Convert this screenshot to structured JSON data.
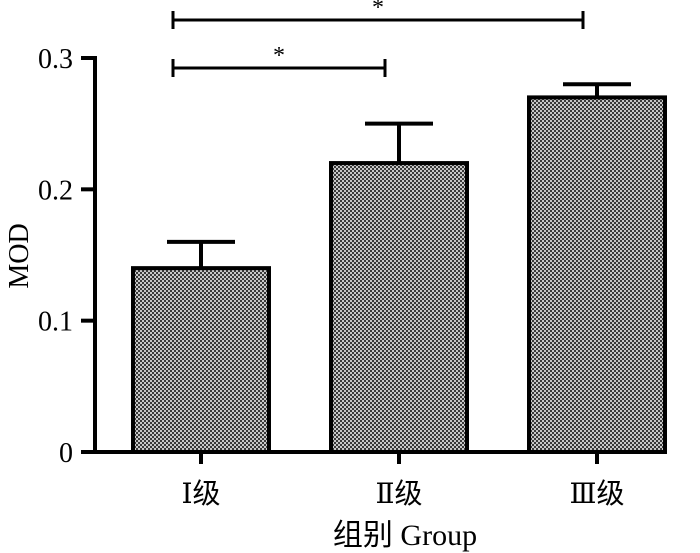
{
  "chart_data": {
    "type": "bar",
    "categories": [
      "Ⅰ级",
      "Ⅱ级",
      "Ⅲ级"
    ],
    "values": [
      0.14,
      0.22,
      0.27
    ],
    "errors": [
      0.02,
      0.03,
      0.01
    ],
    "xlabel": "组别 Group",
    "ylabel": "MOD",
    "ylim": [
      0,
      0.3
    ],
    "yticks": [
      0,
      0.1,
      0.2,
      0.3
    ],
    "ytick_labels": [
      "0",
      "0.1",
      "0.2",
      "0.3"
    ],
    "bar_fill": "checkered gray pattern",
    "bar_stroke_color": "#000000",
    "significance": [
      {
        "from": 0,
        "to": 1,
        "label": "*"
      },
      {
        "from": 0,
        "to": 2,
        "label": "*"
      }
    ]
  }
}
